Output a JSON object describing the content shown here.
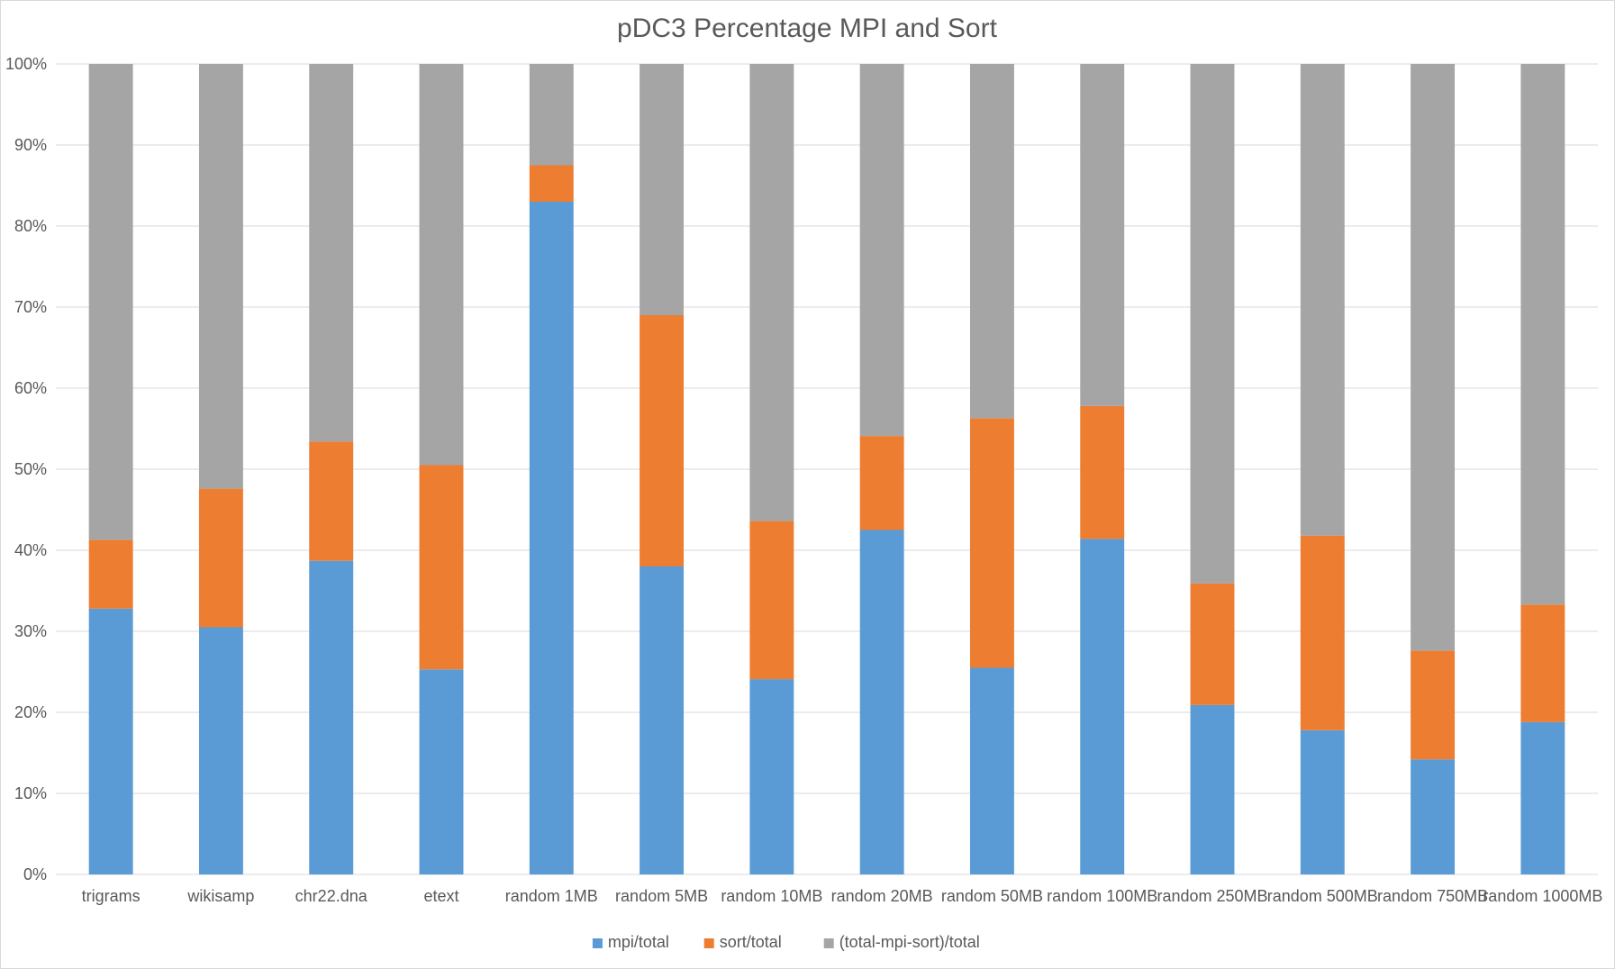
{
  "chart_data": {
    "type": "bar",
    "stacked": true,
    "percent_stacked": true,
    "title": "pDC3 Percentage MPI and Sort",
    "xlabel": "",
    "ylabel": "",
    "ylim": [
      0,
      1
    ],
    "y_tick_values": [
      0,
      0.1,
      0.2,
      0.3,
      0.4,
      0.5,
      0.6,
      0.7,
      0.8,
      0.9,
      1.0
    ],
    "y_tick_labels": [
      "0%",
      "10%",
      "20%",
      "30%",
      "40%",
      "50%",
      "60%",
      "70%",
      "80%",
      "90%",
      "100%"
    ],
    "grid": true,
    "legend_position": "bottom",
    "categories": [
      "trigrams",
      "wikisamp",
      "chr22.dna",
      "etext",
      "random 1MB",
      "random 5MB",
      "random 10MB",
      "random 20MB",
      "random 50MB",
      "random 100MB",
      "random 250MB",
      "random 500MB",
      "random 750MB",
      "random 1000MB"
    ],
    "series": [
      {
        "name": "mpi/total",
        "color": "#5b9bd5",
        "values": [
          0.328,
          0.305,
          0.387,
          0.253,
          0.83,
          0.38,
          0.241,
          0.425,
          0.255,
          0.414,
          0.209,
          0.178,
          0.142,
          0.188
        ]
      },
      {
        "name": "sort/total",
        "color": "#ed7d31",
        "values": [
          0.085,
          0.171,
          0.147,
          0.252,
          0.045,
          0.31,
          0.195,
          0.116,
          0.308,
          0.164,
          0.15,
          0.24,
          0.134,
          0.145
        ]
      },
      {
        "name": "(total-mpi-sort)/total",
        "color": "#a5a5a5",
        "values": [
          0.587,
          0.524,
          0.466,
          0.495,
          0.125,
          0.31,
          0.564,
          0.459,
          0.437,
          0.422,
          0.641,
          0.582,
          0.724,
          0.667
        ]
      }
    ]
  }
}
